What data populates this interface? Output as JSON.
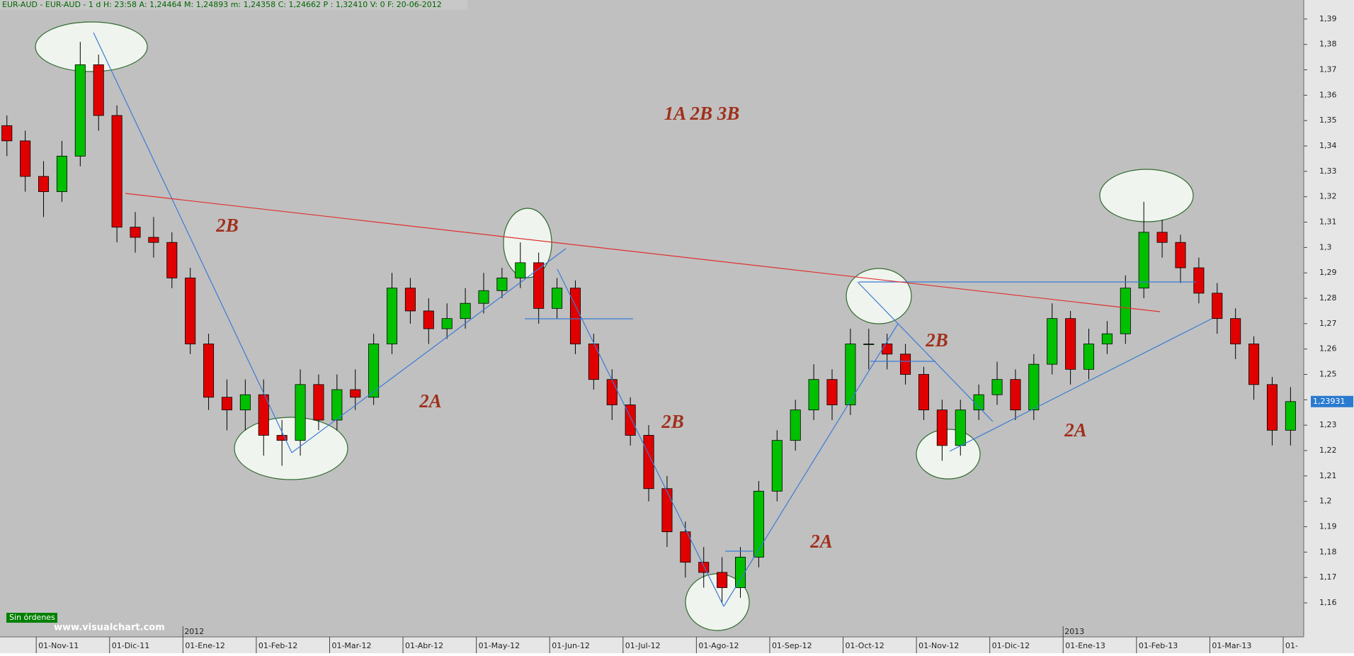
{
  "chart_data": {
    "type": "candlestick",
    "header": "EUR-AUD - EUR-AUD - 1 d H: 23:58 A: 1,24464 M: 1,24893 m: 1,24358 C: 1,24662 P : 1,32410 V: 0 F: 20-06-2012",
    "annotations": [
      "1A 2B 3B",
      "2B",
      "2A",
      "2B",
      "2A",
      "2B",
      "2A"
    ],
    "up_color": "#00c000",
    "down_color": "#e00000",
    "xlim": [
      -0.494,
      17.28
    ],
    "xticks": [
      {
        "value": 0,
        "label": "01-Nov-11"
      },
      {
        "value": 1,
        "label": "01-Dic-11"
      },
      {
        "value": 2,
        "label": "01-Ene-12"
      },
      {
        "value": 3,
        "label": "01-Feb-12"
      },
      {
        "value": 4,
        "label": "01-Mar-12"
      },
      {
        "value": 5,
        "label": "01-Abr-12"
      },
      {
        "value": 6,
        "label": "01-May-12"
      },
      {
        "value": 7,
        "label": "01-Jun-12"
      },
      {
        "value": 8,
        "label": "01-Jul-12"
      },
      {
        "value": 9,
        "label": "01-Ago-12"
      },
      {
        "value": 10,
        "label": "01-Sep-12"
      },
      {
        "value": 11,
        "label": "01-Oct-12"
      },
      {
        "value": 12,
        "label": "01-Nov-12"
      },
      {
        "value": 13,
        "label": "01-Dic-12"
      },
      {
        "value": 14,
        "label": "01-Ene-13"
      },
      {
        "value": 15,
        "label": "01-Feb-13"
      },
      {
        "value": 16,
        "label": "01-Mar-13"
      },
      {
        "value": 17,
        "label": "01-"
      }
    ],
    "year_markers": [
      {
        "value": 2,
        "label": "2012"
      },
      {
        "value": 14,
        "label": "2013"
      }
    ],
    "ylim": [
      1.1466,
      1.3975
    ],
    "yticks": [
      {
        "value": 1.16,
        "label": "1,16"
      },
      {
        "value": 1.17,
        "label": "1,17"
      },
      {
        "value": 1.18,
        "label": "1,18"
      },
      {
        "value": 1.19,
        "label": "1,19"
      },
      {
        "value": 1.2,
        "label": "1,2"
      },
      {
        "value": 1.21,
        "label": "1,21"
      },
      {
        "value": 1.22,
        "label": "1,22"
      },
      {
        "value": 1.23,
        "label": "1,23"
      },
      {
        "value": 1.24,
        "label": "1,24"
      },
      {
        "value": 1.25,
        "label": "1,25"
      },
      {
        "value": 1.26,
        "label": "1,26"
      },
      {
        "value": 1.27,
        "label": "1,27"
      },
      {
        "value": 1.28,
        "label": "1,28"
      },
      {
        "value": 1.29,
        "label": "1,29"
      },
      {
        "value": 1.3,
        "label": "1,3"
      },
      {
        "value": 1.31,
        "label": "1,31"
      },
      {
        "value": 1.32,
        "label": "1,32"
      },
      {
        "value": 1.33,
        "label": "1,33"
      },
      {
        "value": 1.34,
        "label": "1,34"
      },
      {
        "value": 1.35,
        "label": "1,35"
      },
      {
        "value": 1.36,
        "label": "1,36"
      },
      {
        "value": 1.37,
        "label": "1,37"
      },
      {
        "value": 1.38,
        "label": "1,38"
      },
      {
        "value": 1.39,
        "label": "1,39"
      }
    ],
    "last_price": {
      "value": 1.23931,
      "label": "1,23931"
    },
    "x": [
      -0.4,
      -0.15,
      0.1,
      0.35,
      0.6,
      0.85,
      1.1,
      1.35,
      1.6,
      1.85,
      2.1,
      2.35,
      2.6,
      2.85,
      3.1,
      3.35,
      3.6,
      3.85,
      4.1,
      4.35,
      4.6,
      4.85,
      5.1,
      5.35,
      5.6,
      5.85,
      6.1,
      6.35,
      6.6,
      6.85,
      7.1,
      7.35,
      7.6,
      7.85,
      8.1,
      8.35,
      8.6,
      8.85,
      9.1,
      9.35,
      9.6,
      9.85,
      10.1,
      10.35,
      10.6,
      10.85,
      11.1,
      11.35,
      11.6,
      11.85,
      12.1,
      12.35,
      12.6,
      12.85,
      13.1,
      13.35,
      13.6,
      13.85,
      14.1,
      14.35,
      14.6,
      14.85,
      15.1,
      15.35,
      15.6,
      15.85,
      16.1,
      16.35,
      16.6,
      16.85,
      17.1
    ],
    "open": [
      1.348,
      1.342,
      1.328,
      1.322,
      1.336,
      1.372,
      1.352,
      1.308,
      1.304,
      1.302,
      1.288,
      1.262,
      1.241,
      1.236,
      1.242,
      1.226,
      1.224,
      1.246,
      1.232,
      1.244,
      1.241,
      1.262,
      1.284,
      1.275,
      1.268,
      1.272,
      1.278,
      1.283,
      1.288,
      1.294,
      1.276,
      1.284,
      1.262,
      1.248,
      1.238,
      1.226,
      1.205,
      1.188,
      1.176,
      1.172,
      1.166,
      1.178,
      1.204,
      1.224,
      1.236,
      1.248,
      1.238,
      1.262,
      1.262,
      1.258,
      1.25,
      1.236,
      1.222,
      1.236,
      1.242,
      1.248,
      1.236,
      1.254,
      1.272,
      1.252,
      1.262,
      1.266,
      1.284,
      1.306,
      1.302,
      1.292,
      1.282,
      1.272,
      1.262,
      1.246,
      1.228
    ],
    "high": [
      1.352,
      1.346,
      1.334,
      1.342,
      1.381,
      1.376,
      1.356,
      1.314,
      1.312,
      1.306,
      1.292,
      1.266,
      1.248,
      1.248,
      1.248,
      1.232,
      1.252,
      1.25,
      1.25,
      1.252,
      1.266,
      1.29,
      1.288,
      1.28,
      1.278,
      1.284,
      1.29,
      1.292,
      1.302,
      1.298,
      1.288,
      1.287,
      1.266,
      1.252,
      1.241,
      1.23,
      1.21,
      1.192,
      1.182,
      1.178,
      1.182,
      1.208,
      1.228,
      1.24,
      1.254,
      1.252,
      1.268,
      1.268,
      1.266,
      1.262,
      1.253,
      1.24,
      1.24,
      1.246,
      1.255,
      1.252,
      1.258,
      1.278,
      1.275,
      1.268,
      1.271,
      1.289,
      1.318,
      1.311,
      1.305,
      1.296,
      1.286,
      1.276,
      1.265,
      1.249,
      1.245
    ],
    "low": [
      1.336,
      1.322,
      1.312,
      1.318,
      1.332,
      1.346,
      1.302,
      1.298,
      1.296,
      1.284,
      1.258,
      1.236,
      1.228,
      1.228,
      1.218,
      1.214,
      1.218,
      1.228,
      1.228,
      1.236,
      1.238,
      1.258,
      1.27,
      1.262,
      1.264,
      1.268,
      1.274,
      1.28,
      1.284,
      1.27,
      1.272,
      1.258,
      1.244,
      1.232,
      1.222,
      1.2,
      1.182,
      1.17,
      1.166,
      1.16,
      1.162,
      1.174,
      1.2,
      1.22,
      1.232,
      1.232,
      1.234,
      1.252,
      1.252,
      1.246,
      1.232,
      1.216,
      1.218,
      1.232,
      1.238,
      1.232,
      1.232,
      1.25,
      1.246,
      1.248,
      1.258,
      1.262,
      1.28,
      1.296,
      1.286,
      1.278,
      1.266,
      1.256,
      1.24,
      1.222,
      1.222
    ],
    "close": [
      1.342,
      1.328,
      1.322,
      1.336,
      1.372,
      1.352,
      1.308,
      1.304,
      1.302,
      1.288,
      1.262,
      1.241,
      1.236,
      1.242,
      1.226,
      1.224,
      1.246,
      1.232,
      1.244,
      1.241,
      1.262,
      1.284,
      1.275,
      1.268,
      1.272,
      1.278,
      1.283,
      1.288,
      1.294,
      1.276,
      1.284,
      1.262,
      1.248,
      1.238,
      1.226,
      1.205,
      1.188,
      1.176,
      1.172,
      1.166,
      1.178,
      1.204,
      1.224,
      1.236,
      1.248,
      1.238,
      1.262,
      1.262,
      1.258,
      1.25,
      1.236,
      1.222,
      1.236,
      1.242,
      1.248,
      1.236,
      1.254,
      1.272,
      1.252,
      1.262,
      1.266,
      1.284,
      1.306,
      1.302,
      1.292,
      1.282,
      1.272,
      1.262,
      1.246,
      1.228,
      1.2393
    ]
  },
  "status": "Sin órdenes",
  "watermark": "www.visualchart.com"
}
